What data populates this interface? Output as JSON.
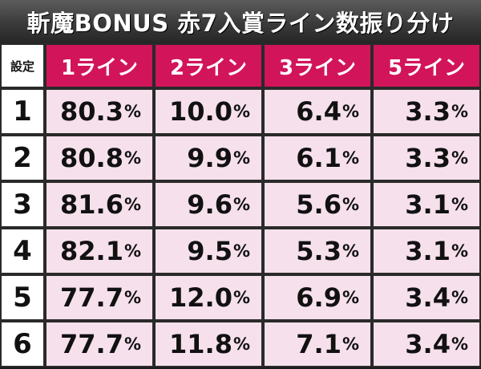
{
  "title": "斬魔BONUS 赤7入賞ライン数振り分け",
  "table": {
    "corner": "設定",
    "columns": [
      "1ライン",
      "2ライン",
      "3ライン",
      "5ライン"
    ],
    "rows": [
      {
        "setting": "1",
        "values": [
          "80.3",
          "10.0",
          "6.4",
          "3.3"
        ]
      },
      {
        "setting": "2",
        "values": [
          "80.8",
          "9.9",
          "6.1",
          "3.3"
        ]
      },
      {
        "setting": "3",
        "values": [
          "81.6",
          "9.6",
          "5.6",
          "3.1"
        ]
      },
      {
        "setting": "4",
        "values": [
          "82.1",
          "9.5",
          "5.3",
          "3.1"
        ]
      },
      {
        "setting": "5",
        "values": [
          "77.7",
          "12.0",
          "6.9",
          "3.4"
        ]
      },
      {
        "setting": "6",
        "values": [
          "77.7",
          "11.8",
          "7.1",
          "3.4"
        ]
      }
    ],
    "unit": "%"
  },
  "colors": {
    "header_bg": "#d2145a",
    "cell_bg": "#f6e0ec",
    "title_bg": "#3a3a3a"
  }
}
